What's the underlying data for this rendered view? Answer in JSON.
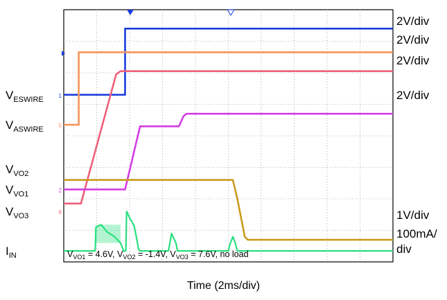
{
  "chart_data": {
    "type": "line",
    "xlabel": "Time (2ms/div)",
    "xdivisions": 10,
    "ydivisions": 8,
    "grid": true,
    "grid_style": "dotted",
    "annotation": {
      "parts": [
        {
          "t": "V",
          "sub": "VO1",
          "rest": " = 4.6V, "
        },
        {
          "t": "V",
          "sub": "VO2",
          "rest": " = -1.4V, "
        },
        {
          "t": "V",
          "sub": "VO3",
          "rest": " = 7.6V, no load"
        }
      ]
    },
    "series": [
      {
        "name": "ESWIRE",
        "label_main": "V",
        "label_sub": "ESWIRE",
        "marker": "1",
        "scale": "2V/div",
        "color": "#1a3ddb",
        "points": [
          [
            0,
            4.8
          ],
          [
            4.1,
            4.8
          ],
          [
            4.1,
            6.9
          ],
          [
            22,
            6.9
          ]
        ]
      },
      {
        "name": "ASWIRE",
        "label_main": "V",
        "label_sub": "ASWIRE",
        "marker": "5",
        "scale": "2V/div",
        "color": "#f5955a",
        "points": [
          [
            0,
            3.85
          ],
          [
            1.0,
            3.85
          ],
          [
            1.0,
            6.15
          ],
          [
            22,
            6.15
          ]
        ]
      },
      {
        "name": "VO3",
        "label_main": "V",
        "label_sub": "VO3",
        "marker": "6",
        "scale": "2V/div",
        "color": "#f0607a",
        "points": [
          [
            0,
            1.35
          ],
          [
            1.15,
            1.35
          ],
          [
            3.5,
            5.45
          ],
          [
            3.8,
            5.55
          ],
          [
            22,
            5.55
          ]
        ]
      },
      {
        "name": "VO1",
        "label_main": "V",
        "label_sub": "VO1",
        "marker": "2",
        "scale": "2V/div",
        "color": "#d43ce6",
        "points": [
          [
            0,
            1.8
          ],
          [
            4.1,
            1.8
          ],
          [
            5.1,
            3.8
          ],
          [
            7.7,
            3.8
          ],
          [
            8.0,
            4.12
          ],
          [
            8.2,
            4.2
          ],
          [
            22,
            4.2
          ]
        ]
      },
      {
        "name": "VO2",
        "label_main": "V",
        "label_sub": "VO2",
        "marker": "",
        "scale": "1V/div",
        "color": "#c99a1a",
        "points": [
          [
            0,
            2.1
          ],
          [
            11.3,
            2.1
          ],
          [
            11.6,
            1.5
          ],
          [
            12.1,
            0.3
          ],
          [
            12.3,
            0.2
          ],
          [
            22,
            0.2
          ]
        ]
      },
      {
        "name": "IN",
        "label_main": "I",
        "label_sub": "IN",
        "marker": "",
        "scale": "100mA/div",
        "color": "#28e07e",
        "points": [
          [
            0,
            -0.15
          ],
          [
            2.1,
            -0.15
          ],
          [
            2.15,
            0.6
          ],
          [
            2.5,
            0.68
          ],
          [
            2.9,
            0.45
          ],
          [
            3.4,
            0.3
          ],
          [
            3.8,
            0.1
          ],
          [
            4.0,
            -0.15
          ],
          [
            4.15,
            -0.15
          ],
          [
            4.2,
            1.1
          ],
          [
            4.4,
            0.9
          ],
          [
            4.7,
            0.65
          ],
          [
            4.85,
            0.3
          ],
          [
            5.0,
            -0.1
          ],
          [
            5.1,
            -0.15
          ],
          [
            7.0,
            -0.15
          ],
          [
            7.2,
            0.4
          ],
          [
            7.5,
            0.1
          ],
          [
            7.6,
            -0.15
          ],
          [
            11.0,
            -0.15
          ],
          [
            11.1,
            0.05
          ],
          [
            11.3,
            0.3
          ],
          [
            11.45,
            0.12
          ],
          [
            11.6,
            -0.15
          ],
          [
            22,
            -0.15
          ]
        ]
      }
    ]
  }
}
